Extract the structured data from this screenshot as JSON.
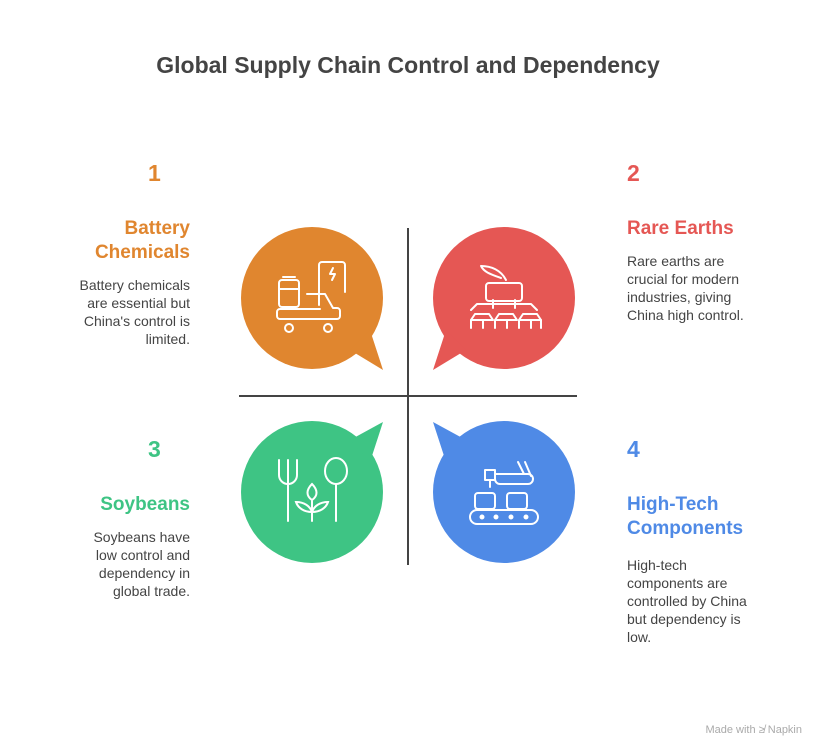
{
  "title": "Global Supply Chain Control and Dependency",
  "colors": {
    "orange": "#E0862F",
    "red": "#E55754",
    "green": "#3EC484",
    "blue": "#4F8AE6"
  },
  "items": [
    {
      "num": "1",
      "heading": "Battery Chemicals",
      "desc": "Battery chemicals are essential but China's control is limited.",
      "icon": "battery-car-charging-icon"
    },
    {
      "num": "2",
      "heading": "Rare Earths",
      "desc": "Rare earths are crucial for modern industries, giving China high control.",
      "icon": "mining-machine-icon"
    },
    {
      "num": "3",
      "heading": "Soybeans",
      "desc": "Soybeans have low control and dependency in global trade.",
      "icon": "farming-plant-icon"
    },
    {
      "num": "4",
      "heading": "High-Tech Components",
      "desc": "High-tech components are controlled by China but dependency is low.",
      "icon": "robotic-assembly-icon"
    }
  ],
  "footer": "Made with ≱ Napkin"
}
